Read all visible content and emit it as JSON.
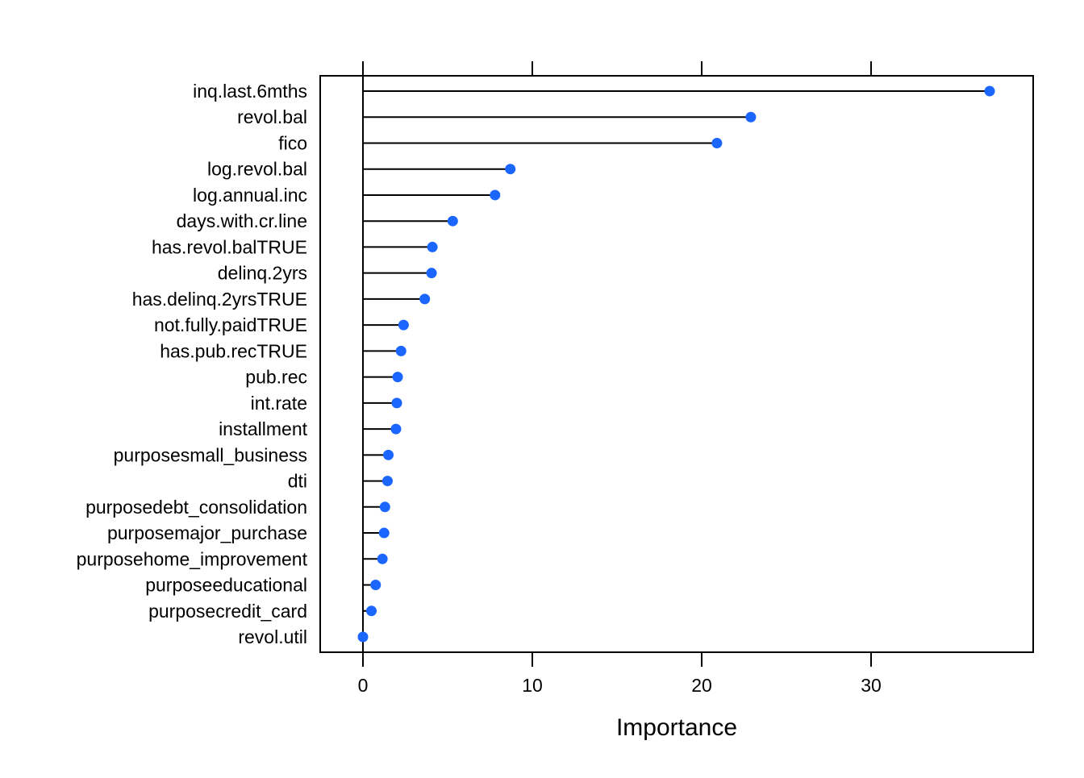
{
  "chart_data": {
    "type": "dot",
    "xlabel": "Importance",
    "ylabel": "",
    "xlim": [
      -2.5,
      39.5
    ],
    "xticks": [
      0,
      10,
      20,
      30
    ],
    "grid": false,
    "legend": "none",
    "colors": {
      "point": "#1a66ff",
      "line": "#000000",
      "frame": "#000000"
    },
    "categories": [
      "inq.last.6mths",
      "revol.bal",
      "fico",
      "log.revol.bal",
      "log.annual.inc",
      "days.with.cr.line",
      "has.revol.balTRUE",
      "delinq.2yrs",
      "has.delinq.2yrsTRUE",
      "not.fully.paidTRUE",
      "has.pub.recTRUE",
      "pub.rec",
      "int.rate",
      "installment",
      "purposesmall_business",
      "dti",
      "purposedebt_consolidation",
      "purposemajor_purchase",
      "purposehome_improvement",
      "purposeeducational",
      "purposecredit_card",
      "revol.util"
    ],
    "values": [
      37.0,
      22.9,
      20.9,
      8.7,
      7.8,
      5.3,
      4.1,
      4.05,
      3.65,
      2.4,
      2.25,
      2.05,
      2.0,
      1.95,
      1.5,
      1.45,
      1.3,
      1.25,
      1.15,
      0.75,
      0.5,
      0.0
    ]
  }
}
